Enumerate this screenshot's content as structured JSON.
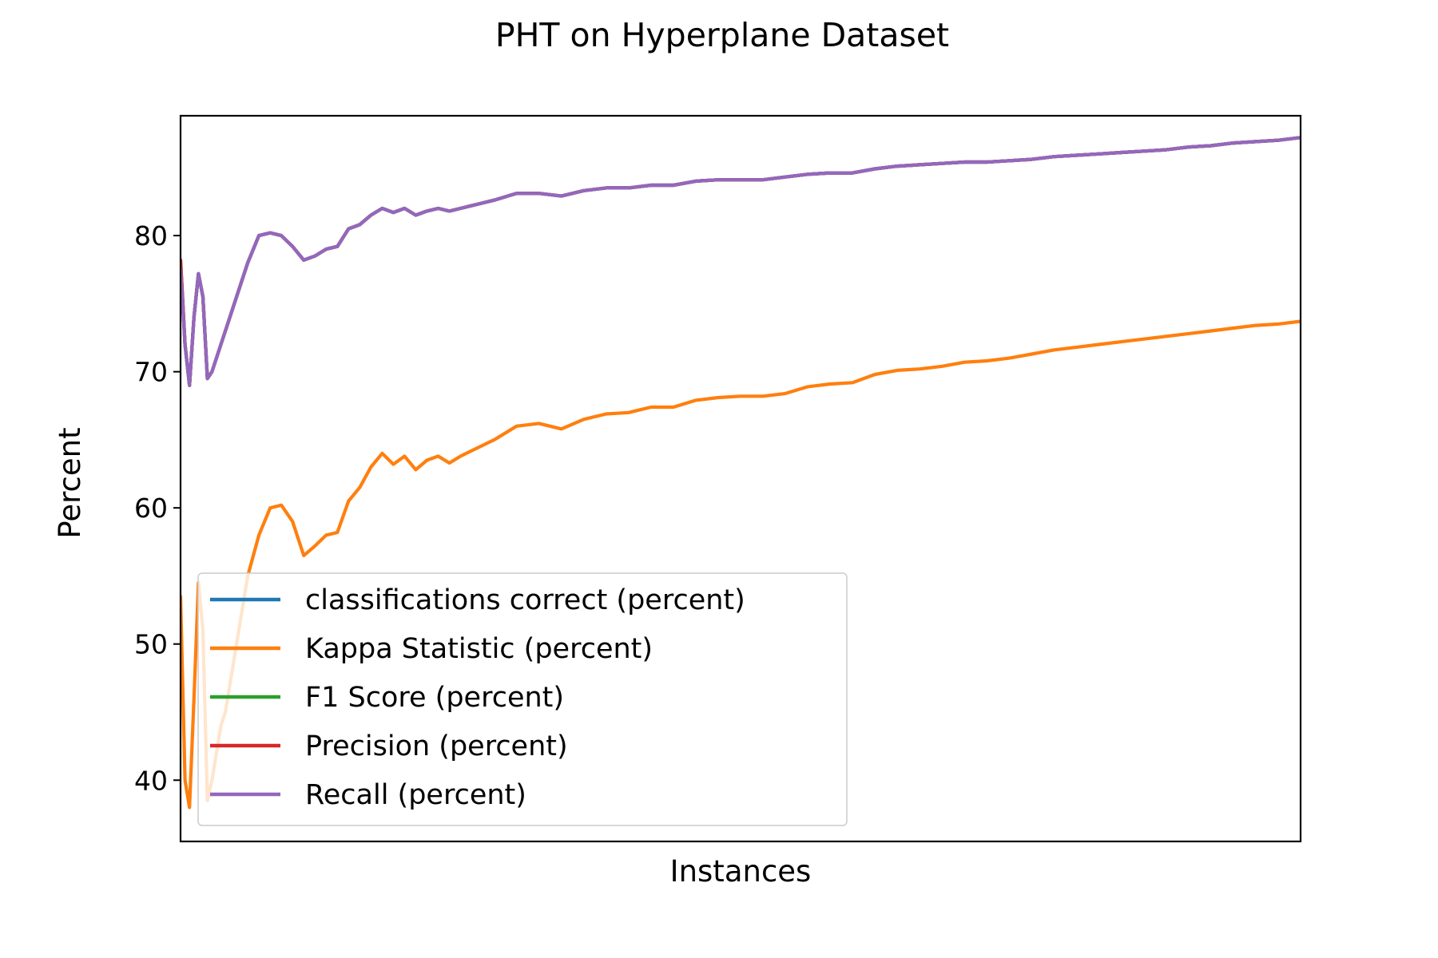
{
  "chart_data": {
    "type": "line",
    "title": "PHT on Hyperplane Dataset",
    "xlabel": "Instances",
    "ylabel": "Percent",
    "ylim": [
      35.5,
      88.8
    ],
    "xlim": [
      0,
      1
    ],
    "yticks": [
      "40",
      "50",
      "60",
      "70",
      "80"
    ],
    "grid": false,
    "legend_position": "lower-left",
    "x": [
      0,
      0.004,
      0.008,
      0.012,
      0.016,
      0.02,
      0.024,
      0.028,
      0.032,
      0.036,
      0.04,
      0.05,
      0.06,
      0.07,
      0.08,
      0.09,
      0.1,
      0.11,
      0.12,
      0.13,
      0.14,
      0.15,
      0.16,
      0.17,
      0.18,
      0.19,
      0.2,
      0.21,
      0.22,
      0.23,
      0.24,
      0.25,
      0.26,
      0.28,
      0.3,
      0.32,
      0.34,
      0.36,
      0.38,
      0.4,
      0.42,
      0.44,
      0.46,
      0.48,
      0.5,
      0.52,
      0.54,
      0.56,
      0.58,
      0.6,
      0.62,
      0.64,
      0.66,
      0.68,
      0.7,
      0.72,
      0.74,
      0.76,
      0.78,
      0.8,
      0.82,
      0.84,
      0.86,
      0.88,
      0.9,
      0.92,
      0.94,
      0.96,
      0.98,
      1.0
    ],
    "series": [
      {
        "name": "classifications correct (percent)",
        "color": "#1f77b4",
        "values": [
          78.2,
          72,
          69,
          74,
          77.2,
          75.5,
          69.5,
          70,
          71,
          72,
          73,
          75.5,
          78,
          80,
          80.2,
          80,
          79.2,
          78.2,
          78.5,
          79,
          79.2,
          80.5,
          80.8,
          81.5,
          82,
          81.7,
          82,
          81.5,
          81.8,
          82,
          81.8,
          82,
          82.2,
          82.6,
          83.1,
          83.1,
          82.9,
          83.3,
          83.5,
          83.5,
          83.7,
          83.7,
          84,
          84.1,
          84.1,
          84.1,
          84.3,
          84.5,
          84.6,
          84.6,
          84.9,
          85.1,
          85.2,
          85.3,
          85.4,
          85.4,
          85.5,
          85.6,
          85.8,
          85.9,
          86,
          86.1,
          86.2,
          86.3,
          86.5,
          86.6,
          86.8,
          86.9,
          87,
          87.2
        ]
      },
      {
        "name": "Kappa Statistic (percent)",
        "color": "#ff7f0e",
        "values": [
          53.5,
          40,
          38,
          46,
          54.5,
          51,
          38.5,
          40,
          42,
          44,
          45,
          50,
          55,
          58,
          60,
          60.2,
          59,
          56.5,
          57.2,
          58,
          58.2,
          60.5,
          61.5,
          63,
          64,
          63.2,
          63.8,
          62.8,
          63.5,
          63.8,
          63.3,
          63.8,
          64.2,
          65,
          66,
          66.2,
          65.8,
          66.5,
          66.9,
          67,
          67.4,
          67.4,
          67.9,
          68.1,
          68.2,
          68.2,
          68.4,
          68.9,
          69.1,
          69.2,
          69.8,
          70.1,
          70.2,
          70.4,
          70.7,
          70.8,
          71,
          71.3,
          71.6,
          71.8,
          72,
          72.2,
          72.4,
          72.6,
          72.8,
          73,
          73.2,
          73.4,
          73.5,
          73.7
        ]
      },
      {
        "name": "F1 Score (percent)",
        "color": "#2ca02c",
        "values": [
          78,
          72,
          69,
          74,
          77.2,
          75.5,
          69.5,
          70,
          71,
          72,
          73,
          75.5,
          78,
          80,
          80.2,
          80,
          79.2,
          78.2,
          78.5,
          79,
          79.2,
          80.5,
          80.8,
          81.5,
          82,
          81.7,
          82,
          81.5,
          81.8,
          82,
          81.8,
          82,
          82.2,
          82.6,
          83.1,
          83.1,
          82.9,
          83.3,
          83.5,
          83.5,
          83.7,
          83.7,
          84,
          84.1,
          84.1,
          84.1,
          84.3,
          84.5,
          84.6,
          84.6,
          84.9,
          85.1,
          85.2,
          85.3,
          85.4,
          85.4,
          85.5,
          85.6,
          85.8,
          85.9,
          86,
          86.1,
          86.2,
          86.3,
          86.5,
          86.6,
          86.8,
          86.9,
          87,
          87.2
        ]
      },
      {
        "name": "Precision (percent)",
        "color": "#d62728",
        "values": [
          78.2,
          72,
          69,
          74,
          77.2,
          75.5,
          69.5,
          70,
          71,
          72,
          73,
          75.5,
          78,
          80,
          80.2,
          80,
          79.2,
          78.2,
          78.5,
          79,
          79.2,
          80.5,
          80.8,
          81.5,
          82,
          81.7,
          82,
          81.5,
          81.8,
          82,
          81.8,
          82,
          82.2,
          82.6,
          83.1,
          83.1,
          82.9,
          83.3,
          83.5,
          83.5,
          83.7,
          83.7,
          84,
          84.1,
          84.1,
          84.1,
          84.3,
          84.5,
          84.6,
          84.6,
          84.9,
          85.1,
          85.2,
          85.3,
          85.4,
          85.4,
          85.5,
          85.6,
          85.8,
          85.9,
          86,
          86.1,
          86.2,
          86.3,
          86.5,
          86.6,
          86.8,
          86.9,
          87,
          87.2
        ]
      },
      {
        "name": "Recall (percent)",
        "color": "#9467bd",
        "values": [
          77.5,
          72,
          69,
          74,
          77.2,
          75.5,
          69.5,
          70,
          71,
          72,
          73,
          75.5,
          78,
          80,
          80.2,
          80,
          79.2,
          78.2,
          78.5,
          79,
          79.2,
          80.5,
          80.8,
          81.5,
          82,
          81.7,
          82,
          81.5,
          81.8,
          82,
          81.8,
          82,
          82.2,
          82.6,
          83.1,
          83.1,
          82.9,
          83.3,
          83.5,
          83.5,
          83.7,
          83.7,
          84,
          84.1,
          84.1,
          84.1,
          84.3,
          84.5,
          84.6,
          84.6,
          84.9,
          85.1,
          85.2,
          85.3,
          85.4,
          85.4,
          85.5,
          85.6,
          85.8,
          85.9,
          86,
          86.1,
          86.2,
          86.3,
          86.5,
          86.6,
          86.8,
          86.9,
          87,
          87.2
        ]
      }
    ]
  }
}
